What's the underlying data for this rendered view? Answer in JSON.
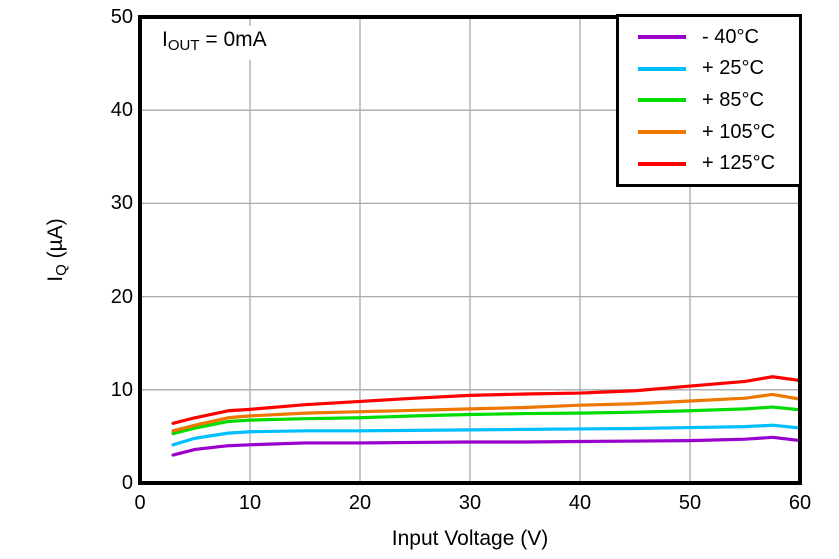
{
  "figure": {
    "annotation": {
      "main": "I",
      "sub": "OUT",
      "rest": " = 0mA"
    },
    "x_axis": {
      "title": "Input Voltage (V)",
      "ticks": [
        "0",
        "10",
        "20",
        "30",
        "40",
        "50",
        "60"
      ]
    },
    "y_axis": {
      "title_main": "I",
      "title_sub": "Q",
      "title_rest": " (µA)",
      "ticks": [
        "0",
        "10",
        "20",
        "30",
        "40",
        "50"
      ]
    }
  },
  "chart_data": {
    "type": "line",
    "title": "",
    "xlabel": "Input Voltage (V)",
    "ylabel": "IQ (µA)",
    "annotation": "IOUT = 0mA",
    "xlim": [
      0,
      60
    ],
    "ylim": [
      0,
      50
    ],
    "x_ticks": [
      0,
      10,
      20,
      30,
      40,
      50,
      60
    ],
    "y_ticks": [
      0,
      10,
      20,
      30,
      40,
      50
    ],
    "grid": true,
    "gridline_color": "#AAAAAA",
    "frame_color": "#000000",
    "legend_position": "top-right",
    "x": [
      3,
      5,
      8,
      10,
      15,
      20,
      25,
      30,
      35,
      40,
      45,
      50,
      55,
      57.5,
      60
    ],
    "series": [
      {
        "name": "- 40°C",
        "color": "#9900CC",
        "values": [
          3.0,
          3.6,
          4.0,
          4.1,
          4.3,
          4.3,
          4.35,
          4.4,
          4.4,
          4.45,
          4.5,
          4.55,
          4.7,
          4.9,
          4.55
        ]
      },
      {
        "name": "+ 25°C",
        "color": "#00BFFF",
        "values": [
          4.1,
          4.8,
          5.35,
          5.5,
          5.6,
          5.6,
          5.65,
          5.7,
          5.75,
          5.8,
          5.85,
          5.95,
          6.05,
          6.2,
          5.9
        ]
      },
      {
        "name": "+ 85°C",
        "color": "#00DC00",
        "values": [
          5.3,
          5.9,
          6.6,
          6.75,
          6.9,
          7.0,
          7.2,
          7.35,
          7.45,
          7.5,
          7.6,
          7.75,
          7.95,
          8.15,
          7.85
        ]
      },
      {
        "name": "+ 105°C",
        "color": "#EE7700",
        "values": [
          5.6,
          6.2,
          7.0,
          7.2,
          7.5,
          7.65,
          7.8,
          7.95,
          8.1,
          8.35,
          8.5,
          8.8,
          9.1,
          9.5,
          9.0
        ]
      },
      {
        "name": "+ 125°C",
        "color": "#FF0000",
        "values": [
          6.4,
          7.0,
          7.75,
          7.9,
          8.4,
          8.75,
          9.1,
          9.4,
          9.55,
          9.65,
          9.9,
          10.4,
          10.9,
          11.4,
          11.0
        ]
      }
    ]
  }
}
